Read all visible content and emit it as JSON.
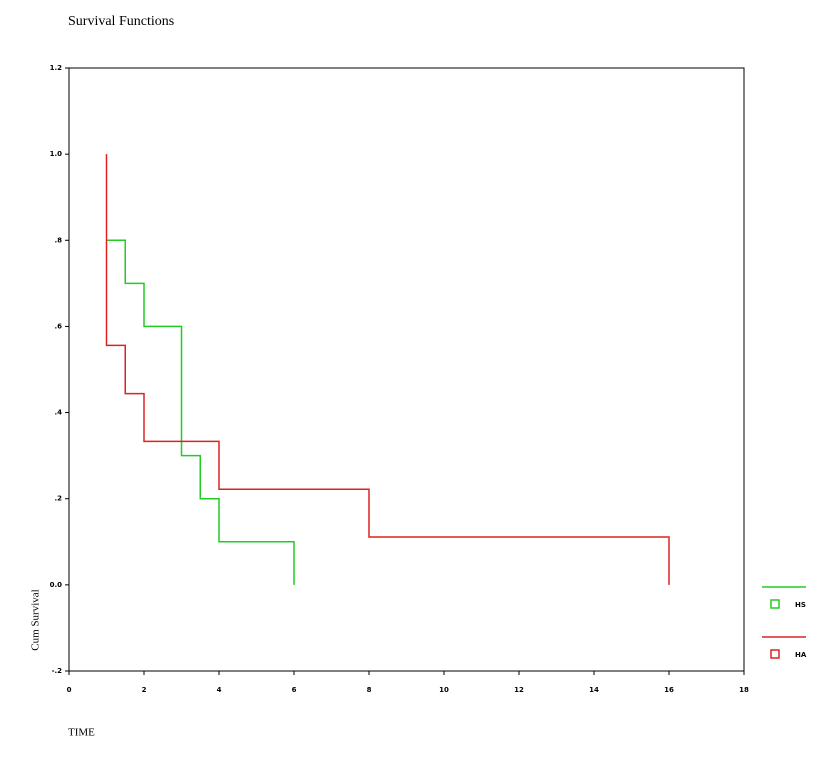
{
  "chart_data": {
    "type": "step",
    "title": "Survival Functions",
    "xlabel": "TIME",
    "ylabel": "Cum Survival",
    "xlim": [
      0,
      18
    ],
    "xticks": [
      0,
      2,
      4,
      6,
      8,
      10,
      12,
      14,
      16,
      18
    ],
    "ylim": [
      -0.2,
      1.2
    ],
    "yticks": [
      {
        "value": -0.2,
        "label": "-.2"
      },
      {
        "value": 0,
        "label": "0.0"
      },
      {
        "value": 0.2,
        "label": ".2"
      },
      {
        "value": 0.4,
        "label": ".4"
      },
      {
        "value": 0.6,
        "label": ".6"
      },
      {
        "value": 0.8,
        "label": ".8"
      },
      {
        "value": 1.0,
        "label": "1.0"
      },
      {
        "value": 1.2,
        "label": "1.2"
      }
    ],
    "series": [
      {
        "name": "HS",
        "color": "#22cc22",
        "x": [
          1,
          1.5,
          2,
          3,
          3.5,
          4,
          6
        ],
        "values": [
          0.8,
          0.7,
          0.6,
          0.3,
          0.2,
          0.1,
          0
        ]
      },
      {
        "name": "HA",
        "color": "#dd2222",
        "x": [
          1,
          1,
          1.5,
          2,
          4,
          8,
          16
        ],
        "values": [
          1.0,
          0.556,
          0.444,
          0.333,
          0.222,
          0.111,
          0
        ]
      }
    ]
  }
}
